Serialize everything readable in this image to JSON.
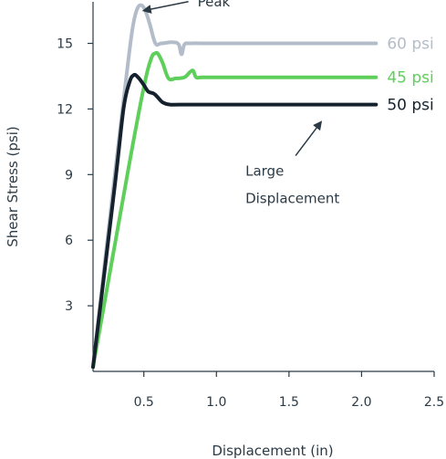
{
  "chart_data": {
    "type": "line",
    "title": "",
    "xlabel": "Displacement (in)",
    "ylabel": "Shear Stress (psi)",
    "xlim": [
      0.15,
      2.5
    ],
    "ylim": [
      0,
      16.9
    ],
    "xticks": [
      0.5,
      1.0,
      1.5,
      2.0,
      2.5
    ],
    "xtick_labels": [
      "0.5",
      "1.0",
      "1.5",
      "2.0",
      "2.5"
    ],
    "yticks": [
      3,
      6,
      9,
      12,
      15
    ],
    "ytick_labels": [
      "3",
      "6",
      "9",
      "12",
      "15"
    ],
    "grid": false,
    "legend": "none",
    "series": [
      {
        "name": "60 psi",
        "color": "#b3bdc9",
        "x": [
          0.15,
          0.3,
          0.38,
          0.42,
          0.45,
          0.48,
          0.51,
          0.54,
          0.58,
          0.62,
          0.7,
          0.74,
          0.76,
          0.78,
          0.82,
          1.0,
          1.5,
          2.1
        ],
        "y": [
          0.2,
          9.0,
          13.5,
          15.6,
          16.5,
          16.75,
          16.5,
          15.9,
          15.0,
          15.0,
          15.05,
          14.95,
          14.5,
          14.95,
          15.0,
          15.0,
          15.0,
          15.0
        ]
      },
      {
        "name": "45 psi",
        "color": "#5ecf5a",
        "x": [
          0.15,
          0.4,
          0.5,
          0.55,
          0.58,
          0.6,
          0.63,
          0.67,
          0.72,
          0.78,
          0.82,
          0.84,
          0.86,
          0.9,
          1.0,
          1.5,
          2.1
        ],
        "y": [
          0.2,
          9.5,
          13.0,
          14.3,
          14.55,
          14.5,
          14.1,
          13.4,
          13.4,
          13.45,
          13.7,
          13.75,
          13.45,
          13.45,
          13.45,
          13.45,
          13.45
        ]
      },
      {
        "name": "50 psi",
        "color": "#15222e",
        "x": [
          0.15,
          0.3,
          0.36,
          0.4,
          0.43,
          0.46,
          0.5,
          0.53,
          0.57,
          0.6,
          0.63,
          0.68,
          0.75,
          1.0,
          1.5,
          2.1
        ],
        "y": [
          0.2,
          8.5,
          12.0,
          13.2,
          13.55,
          13.45,
          13.1,
          12.8,
          12.7,
          12.5,
          12.3,
          12.2,
          12.2,
          12.2,
          12.2,
          12.2
        ]
      }
    ],
    "annotations": [
      {
        "text": "Peak",
        "arrow_to": [
          0.5,
          16.5
        ],
        "text_at": [
          0.87,
          16.7
        ]
      },
      {
        "text": "Large",
        "arrow_to": [
          1.72,
          11.4
        ],
        "text_at": [
          1.2,
          8.95
        ]
      },
      {
        "text": "Displacement",
        "arrow_to": null,
        "text_at": [
          1.2,
          7.7
        ]
      }
    ]
  }
}
